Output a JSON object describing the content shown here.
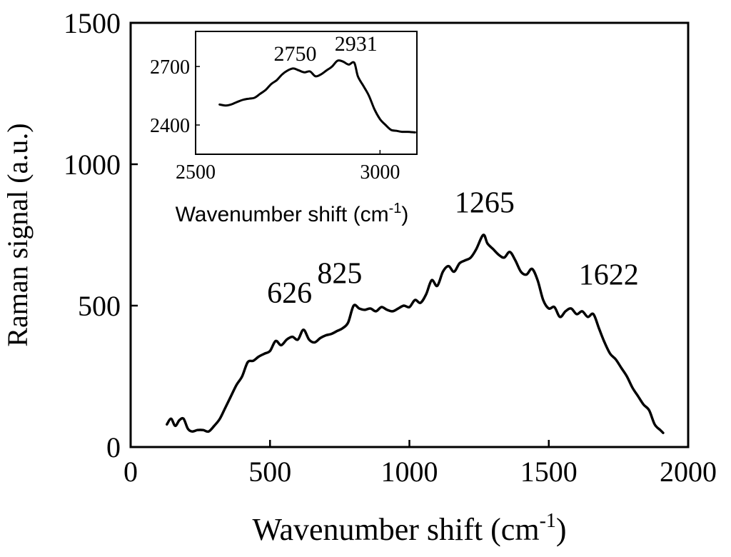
{
  "chart_data": [
    {
      "type": "line",
      "role": "main",
      "xlabel": "Wavenumber shift (cm",
      "xlabel_sup": "-1",
      "xlabel_close": ")",
      "ylabel": "Raman signal (a.u.)",
      "xlim": [
        0,
        2000
      ],
      "ylim": [
        0,
        1500
      ],
      "xticks": [
        0,
        500,
        1000,
        1500,
        2000
      ],
      "yticks": [
        0,
        500,
        1000,
        1500
      ],
      "grid": false,
      "series_color": "#000000",
      "annotations": [
        {
          "text": "626",
          "x": 570,
          "y": 510
        },
        {
          "text": "825",
          "x": 750,
          "y": 580
        },
        {
          "text": "1265",
          "x": 1270,
          "y": 830
        },
        {
          "text": "1622",
          "x": 1715,
          "y": 575
        }
      ],
      "series": [
        {
          "x": [
            130,
            145,
            160,
            175,
            190,
            205,
            220,
            240,
            260,
            280,
            300,
            320,
            340,
            360,
            380,
            400,
            420,
            440,
            460,
            480,
            500,
            520,
            540,
            560,
            580,
            600,
            620,
            640,
            660,
            680,
            700,
            720,
            740,
            760,
            780,
            800,
            820,
            840,
            860,
            880,
            900,
            920,
            940,
            960,
            980,
            1000,
            1020,
            1040,
            1060,
            1080,
            1100,
            1120,
            1140,
            1160,
            1180,
            1200,
            1220,
            1240,
            1265,
            1280,
            1300,
            1320,
            1340,
            1360,
            1380,
            1400,
            1420,
            1440,
            1460,
            1480,
            1500,
            1520,
            1540,
            1560,
            1580,
            1600,
            1620,
            1640,
            1660,
            1680,
            1700,
            1720,
            1740,
            1760,
            1780,
            1800,
            1820,
            1840,
            1860,
            1880,
            1900,
            1910
          ],
          "y": [
            80,
            100,
            75,
            95,
            100,
            65,
            55,
            60,
            60,
            55,
            75,
            100,
            140,
            180,
            220,
            250,
            300,
            305,
            320,
            330,
            340,
            375,
            360,
            380,
            390,
            380,
            415,
            380,
            370,
            385,
            395,
            400,
            410,
            420,
            440,
            500,
            490,
            485,
            490,
            480,
            495,
            485,
            480,
            490,
            500,
            495,
            520,
            510,
            540,
            590,
            570,
            620,
            640,
            620,
            650,
            660,
            670,
            700,
            750,
            720,
            700,
            680,
            670,
            690,
            660,
            620,
            610,
            630,
            590,
            520,
            490,
            495,
            460,
            480,
            490,
            470,
            480,
            460,
            470,
            420,
            370,
            330,
            310,
            280,
            250,
            210,
            180,
            150,
            130,
            80,
            60,
            50
          ]
        }
      ]
    },
    {
      "type": "line",
      "role": "inset",
      "xlabel": "Wavenumber shift (cm",
      "xlabel_sup": "-1",
      "xlabel_close": ")",
      "xlim": [
        2500,
        3100
      ],
      "ylim": [
        2250,
        2880
      ],
      "xticks": [
        2500,
        3000
      ],
      "yticks": [
        2400,
        2700
      ],
      "grid": false,
      "series_color": "#000000",
      "annotations": [
        {
          "text": "2750",
          "x": 2770,
          "y": 2730
        },
        {
          "text": "2931",
          "x": 2935,
          "y": 2781
        }
      ],
      "series": [
        {
          "x": [
            2565,
            2580,
            2590,
            2600,
            2615,
            2630,
            2645,
            2660,
            2675,
            2690,
            2705,
            2720,
            2735,
            2750,
            2765,
            2780,
            2795,
            2810,
            2825,
            2840,
            2855,
            2870,
            2885,
            2900,
            2915,
            2930,
            2940,
            2955,
            2970,
            2985,
            3000,
            3015,
            3030,
            3045,
            3060,
            3075,
            3095
          ],
          "y": [
            2505,
            2500,
            2502,
            2508,
            2520,
            2530,
            2535,
            2540,
            2560,
            2580,
            2610,
            2630,
            2660,
            2680,
            2690,
            2680,
            2670,
            2675,
            2650,
            2660,
            2680,
            2700,
            2730,
            2725,
            2710,
            2720,
            2650,
            2600,
            2550,
            2480,
            2430,
            2400,
            2375,
            2370,
            2365,
            2365,
            2362
          ]
        }
      ]
    }
  ]
}
